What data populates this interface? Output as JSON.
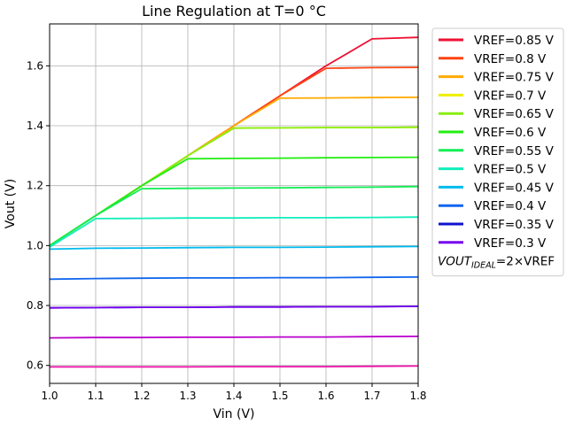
{
  "chart_data": {
    "type": "line",
    "title": "Line Regulation at T=0 °C",
    "xlabel": "Vin (V)",
    "ylabel": "Vout (V)",
    "xlim": [
      1.0,
      1.8
    ],
    "ylim": [
      0.54,
      1.74
    ],
    "xticks": [
      "1.0",
      "1.1",
      "1.2",
      "1.3",
      "1.4",
      "1.5",
      "1.6",
      "1.7",
      "1.8"
    ],
    "yticks": [
      "0.6",
      "0.8",
      "1.0",
      "1.2",
      "1.4",
      "1.6"
    ],
    "grid": true,
    "legend_position": "outside-right",
    "legend_note": {
      "base": "VOUT",
      "sub": "IDEAL",
      "rest": "=2×VREF"
    },
    "x": [
      1.0,
      1.1,
      1.2,
      1.3,
      1.4,
      1.5,
      1.6,
      1.7,
      1.8
    ],
    "series": [
      {
        "name": "VREF=0.85 V",
        "color": "#ee1133",
        "values": [
          1.0,
          1.1,
          1.2,
          1.3,
          1.4,
          1.5,
          1.6,
          1.69,
          1.695
        ]
      },
      {
        "name": "VREF=0.8 V",
        "color": "#ff4411",
        "values": [
          1.0,
          1.1,
          1.2,
          1.3,
          1.4,
          1.5,
          1.592,
          1.594,
          1.595
        ]
      },
      {
        "name": "VREF=0.75 V",
        "color": "#ffaa00",
        "values": [
          1.0,
          1.1,
          1.2,
          1.3,
          1.4,
          1.492,
          1.493,
          1.494,
          1.495
        ]
      },
      {
        "name": "VREF=0.7 V",
        "color": "#eeee00",
        "values": [
          1.0,
          1.1,
          1.2,
          1.3,
          1.392,
          1.393,
          1.394,
          1.394,
          1.395
        ]
      },
      {
        "name": "VREF=0.65 V",
        "color": "#88ee11",
        "values": [
          1.0,
          1.1,
          1.2,
          1.3,
          1.392,
          1.393,
          1.394,
          1.394,
          1.395
        ]
      },
      {
        "name": "VREF=0.6 V",
        "color": "#22ee11",
        "values": [
          1.0,
          1.1,
          1.2,
          1.29,
          1.291,
          1.292,
          1.293,
          1.294,
          1.295
        ]
      },
      {
        "name": "VREF=0.55 V",
        "color": "#11ee55",
        "values": [
          1.0,
          1.1,
          1.19,
          1.191,
          1.192,
          1.193,
          1.194,
          1.195,
          1.197
        ]
      },
      {
        "name": "VREF=0.5 V",
        "color": "#11eebb",
        "values": [
          0.995,
          1.09,
          1.091,
          1.092,
          1.092,
          1.093,
          1.093,
          1.094,
          1.095
        ]
      },
      {
        "name": "VREF=0.45 V",
        "color": "#00bbee",
        "values": [
          0.988,
          0.991,
          0.992,
          0.993,
          0.994,
          0.994,
          0.995,
          0.996,
          0.997
        ]
      },
      {
        "name": "VREF=0.4 V",
        "color": "#1166ee",
        "values": [
          0.888,
          0.89,
          0.891,
          0.892,
          0.892,
          0.893,
          0.893,
          0.894,
          0.895
        ]
      },
      {
        "name": "VREF=0.35 V",
        "color": "#1111cc",
        "values": [
          0.792,
          0.793,
          0.794,
          0.794,
          0.795,
          0.795,
          0.796,
          0.796,
          0.797
        ]
      },
      {
        "name": "VREF=0.3 V",
        "color": "#7700ee",
        "values": [
          0.792,
          0.793,
          0.794,
          0.794,
          0.795,
          0.795,
          0.796,
          0.796,
          0.797
        ]
      },
      {
        "name": "",
        "color": "#bb00cc",
        "values": [
          0.692,
          0.693,
          0.693,
          0.694,
          0.694,
          0.695,
          0.695,
          0.696,
          0.697
        ]
      },
      {
        "name": "",
        "color": "#ee11aa",
        "values": [
          0.595,
          0.595,
          0.595,
          0.595,
          0.596,
          0.596,
          0.596,
          0.597,
          0.598
        ]
      }
    ]
  }
}
